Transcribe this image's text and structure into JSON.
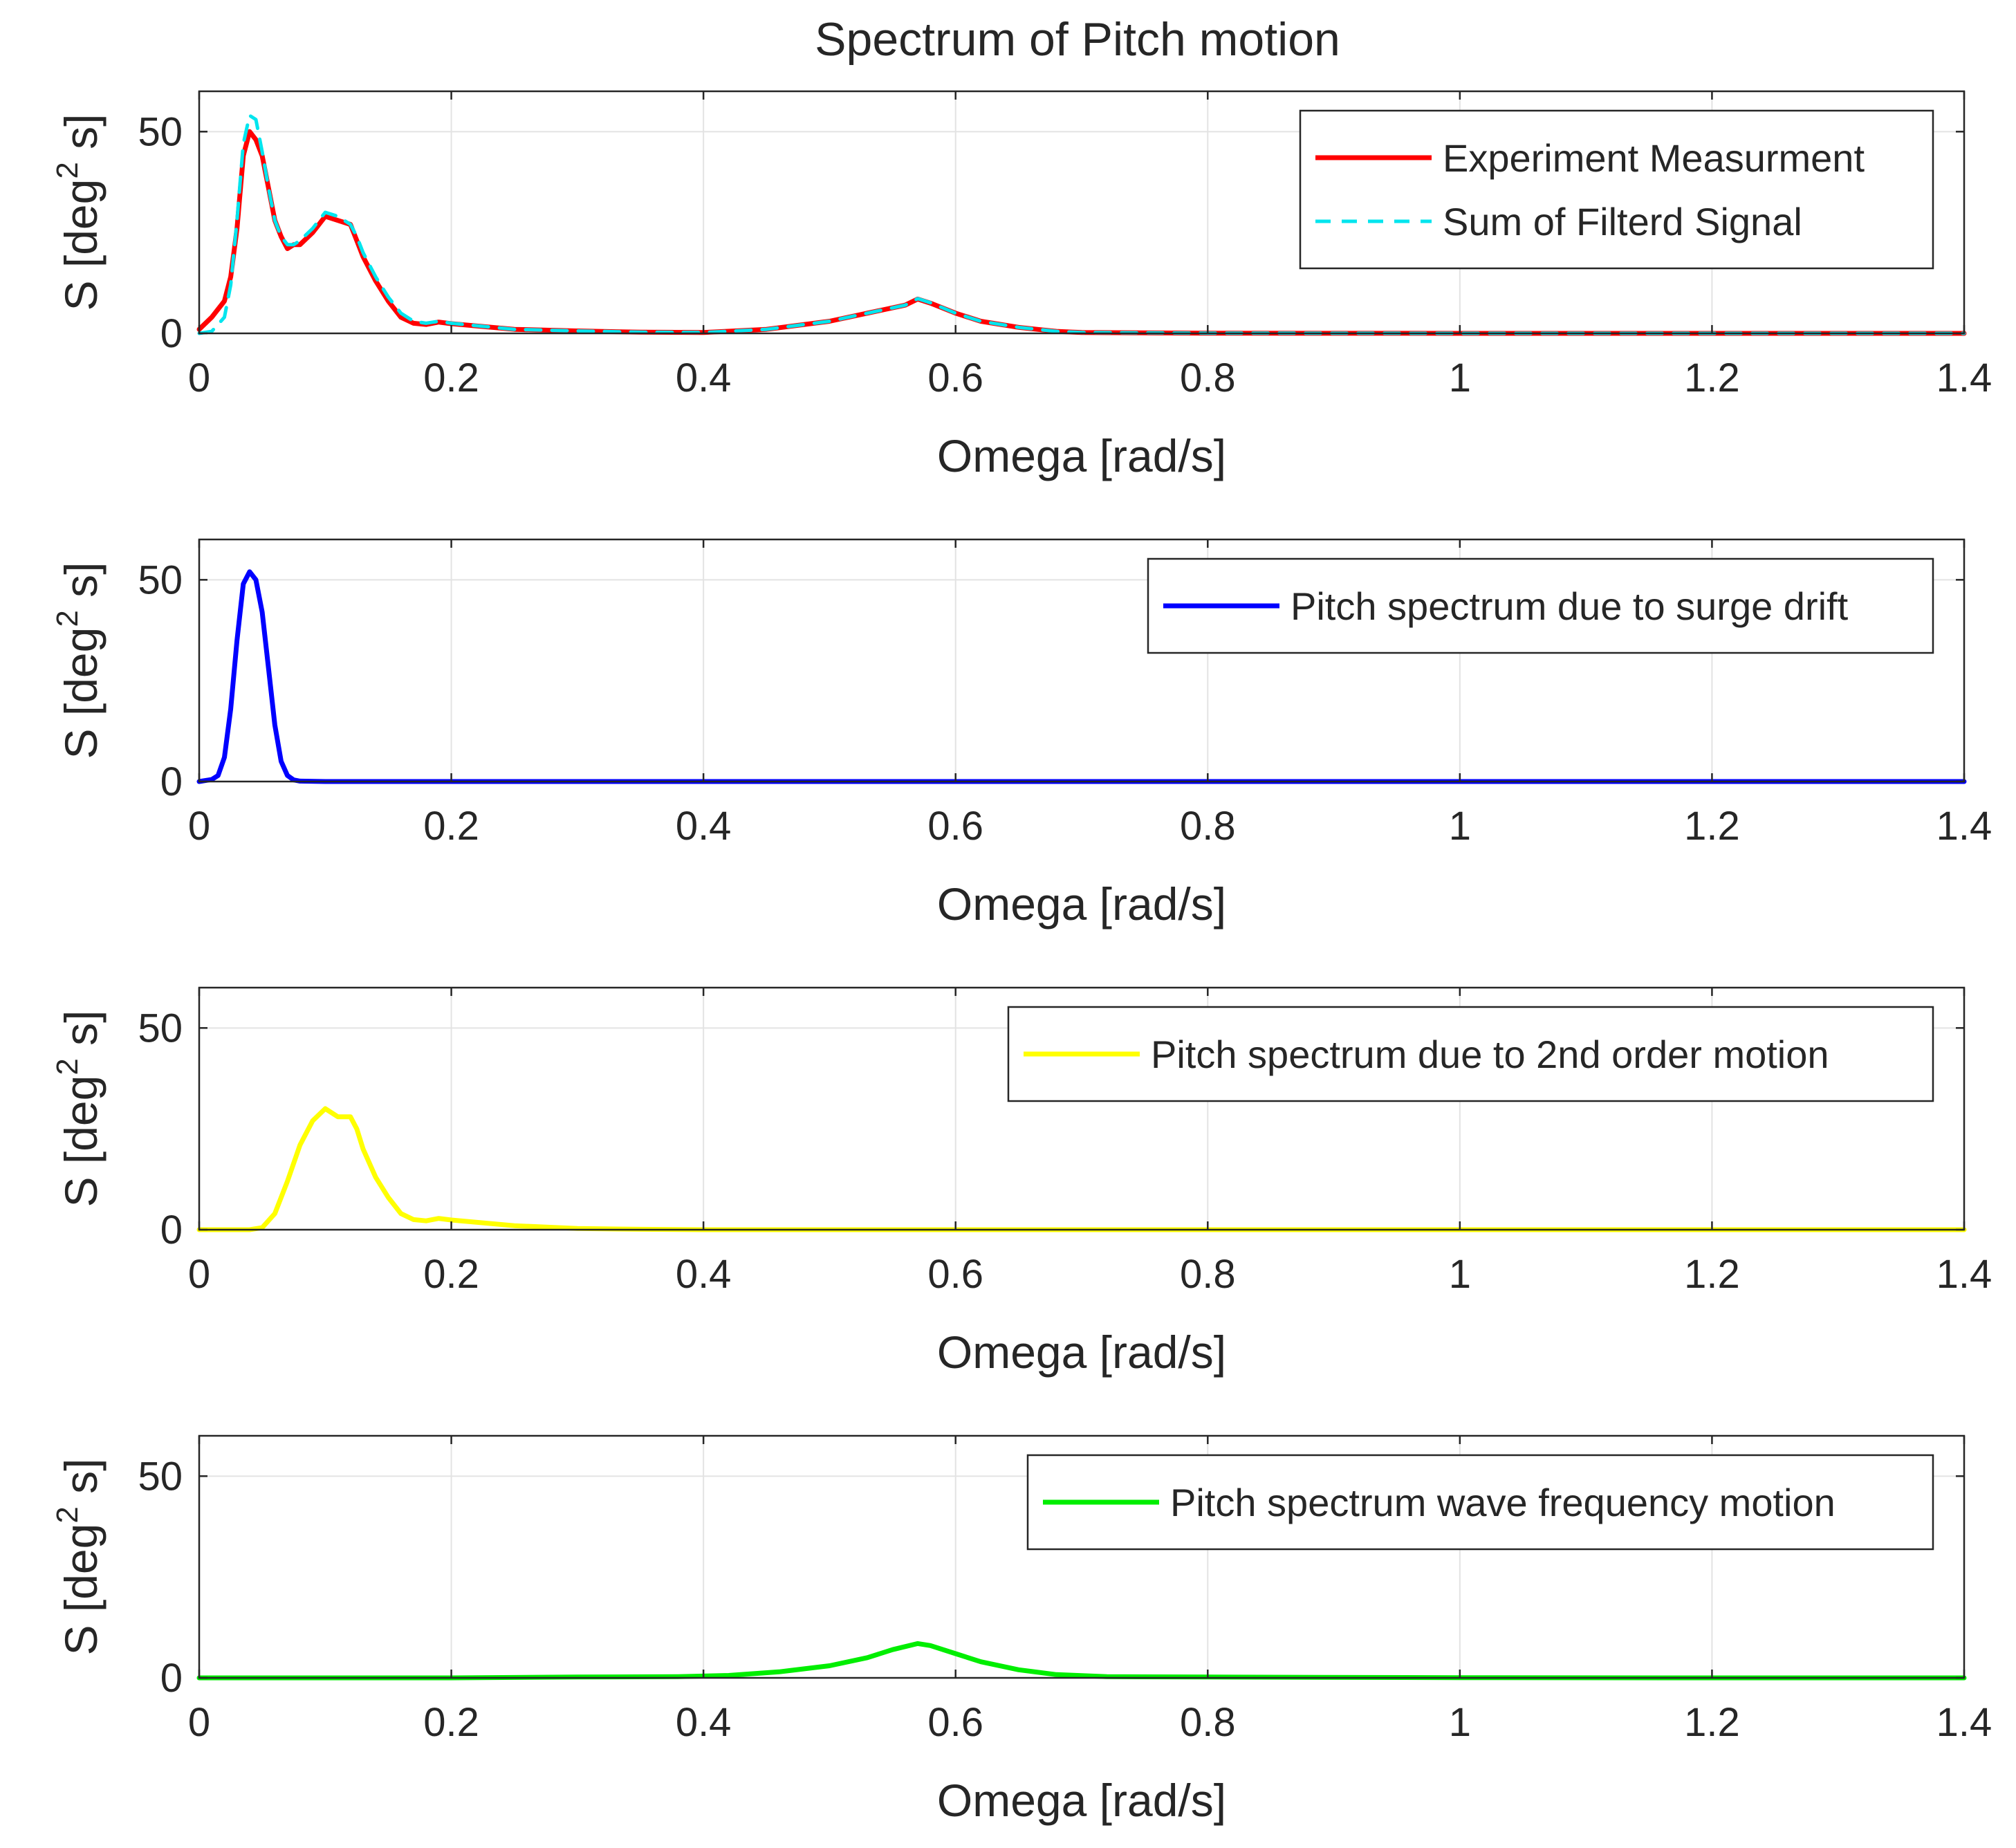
{
  "figure": {
    "title": "Spectrum of Pitch motion"
  },
  "chart_data": [
    {
      "type": "line",
      "xlabel": "Omega [rad/s]",
      "ylabel_prefix": "S [deg",
      "ylabel_sup": "2",
      "ylabel_suffix": " s]",
      "xlim": [
        0,
        1.4
      ],
      "ylim": [
        0,
        60
      ],
      "xticks": [
        0,
        0.2,
        0.4,
        0.6,
        0.8,
        1,
        1.2,
        1.4
      ],
      "xtick_labels": [
        "0",
        "0.2",
        "0.4",
        "0.6",
        "0.8",
        "1",
        "1.2",
        "1.4"
      ],
      "yticks": [
        0,
        50
      ],
      "ytick_labels": [
        "0",
        "50"
      ],
      "grid": true,
      "legend_position": "top-right",
      "series": [
        {
          "name": "Experiment Measurment",
          "color": "#ff0000",
          "style": "solid",
          "x": [
            0,
            0.01,
            0.02,
            0.025,
            0.03,
            0.035,
            0.04,
            0.045,
            0.05,
            0.055,
            0.06,
            0.065,
            0.07,
            0.075,
            0.08,
            0.09,
            0.1,
            0.11,
            0.12,
            0.125,
            0.13,
            0.14,
            0.15,
            0.16,
            0.17,
            0.18,
            0.19,
            0.2,
            0.25,
            0.3,
            0.35,
            0.4,
            0.45,
            0.5,
            0.53,
            0.56,
            0.57,
            0.58,
            0.6,
            0.62,
            0.65,
            0.68,
            0.7,
            0.8,
            1.0,
            1.2,
            1.4
          ],
          "values": [
            1,
            4,
            8,
            14,
            26,
            44,
            50,
            48,
            44,
            36,
            28,
            24,
            21,
            22,
            22,
            25,
            29,
            28,
            27,
            23,
            19,
            13,
            8,
            4,
            2.5,
            2.2,
            2.8,
            2.4,
            1,
            0.6,
            0.3,
            0.2,
            1,
            3,
            5,
            7,
            8.5,
            7.5,
            5,
            3,
            1.5,
            0.5,
            0.2,
            0.05,
            0,
            0,
            0
          ]
        },
        {
          "name": "Sum of Filterd Signal",
          "color": "#00e5ee",
          "style": "dashed",
          "x": [
            0,
            0.01,
            0.02,
            0.025,
            0.03,
            0.035,
            0.04,
            0.045,
            0.05,
            0.055,
            0.06,
            0.065,
            0.07,
            0.075,
            0.08,
            0.09,
            0.1,
            0.11,
            0.12,
            0.125,
            0.13,
            0.14,
            0.15,
            0.16,
            0.17,
            0.18,
            0.19,
            0.2,
            0.25,
            0.3,
            0.35,
            0.4,
            0.45,
            0.5,
            0.53,
            0.56,
            0.57,
            0.58,
            0.6,
            0.62,
            0.65,
            0.68,
            0.7,
            0.8,
            1.0,
            1.2,
            1.4
          ],
          "values": [
            0,
            0.5,
            4,
            12,
            28,
            47,
            54,
            53,
            45,
            36,
            28,
            24,
            22,
            22,
            23,
            26,
            30,
            29,
            27,
            24,
            20,
            14,
            9,
            5,
            3,
            2.5,
            3,
            2.5,
            1,
            0.6,
            0.3,
            0.2,
            1,
            3,
            5,
            7,
            8.6,
            7.6,
            5,
            3,
            1.5,
            0.5,
            0.2,
            0.05,
            0,
            0,
            0
          ]
        }
      ]
    },
    {
      "type": "line",
      "xlabel": "Omega [rad/s]",
      "ylabel_prefix": "S [deg",
      "ylabel_sup": "2",
      "ylabel_suffix": " s]",
      "xlim": [
        0,
        1.4
      ],
      "ylim": [
        0,
        60
      ],
      "xticks": [
        0,
        0.2,
        0.4,
        0.6,
        0.8,
        1,
        1.2,
        1.4
      ],
      "xtick_labels": [
        "0",
        "0.2",
        "0.4",
        "0.6",
        "0.8",
        "1",
        "1.2",
        "1.4"
      ],
      "yticks": [
        0,
        50
      ],
      "ytick_labels": [
        "0",
        "50"
      ],
      "grid": true,
      "legend_position": "top-right",
      "series": [
        {
          "name": "Pitch spectrum due to surge drift",
          "color": "#0000ff",
          "style": "solid",
          "x": [
            0,
            0.01,
            0.015,
            0.02,
            0.025,
            0.03,
            0.035,
            0.04,
            0.045,
            0.05,
            0.055,
            0.06,
            0.065,
            0.07,
            0.075,
            0.08,
            0.1,
            0.2,
            0.4,
            0.6,
            0.8,
            1.0,
            1.2,
            1.4
          ],
          "values": [
            0,
            0.5,
            1.5,
            6,
            18,
            35,
            49,
            52,
            50,
            42,
            28,
            14,
            5,
            1.5,
            0.4,
            0.1,
            0,
            0,
            0,
            0,
            0,
            0,
            0,
            0
          ]
        }
      ]
    },
    {
      "type": "line",
      "xlabel": "Omega [rad/s]",
      "ylabel_prefix": "S [deg",
      "ylabel_sup": "2",
      "ylabel_suffix": " s]",
      "xlim": [
        0,
        1.4
      ],
      "ylim": [
        0,
        60
      ],
      "xticks": [
        0,
        0.2,
        0.4,
        0.6,
        0.8,
        1,
        1.2,
        1.4
      ],
      "xtick_labels": [
        "0",
        "0.2",
        "0.4",
        "0.6",
        "0.8",
        "1",
        "1.2",
        "1.4"
      ],
      "yticks": [
        0,
        50
      ],
      "ytick_labels": [
        "0",
        "50"
      ],
      "grid": true,
      "legend_position": "top-right",
      "series": [
        {
          "name": "Pitch spectrum due to 2nd order motion",
          "color": "#ffff00",
          "style": "solid",
          "x": [
            0,
            0.04,
            0.05,
            0.06,
            0.07,
            0.08,
            0.09,
            0.1,
            0.11,
            0.12,
            0.125,
            0.13,
            0.14,
            0.15,
            0.16,
            0.17,
            0.18,
            0.19,
            0.2,
            0.25,
            0.3,
            0.35,
            0.4,
            0.6,
            0.8,
            1.0,
            1.2,
            1.4
          ],
          "values": [
            0,
            0,
            0.5,
            4,
            12,
            21,
            27,
            30,
            28,
            28,
            25,
            20,
            13,
            8,
            4,
            2.5,
            2.2,
            2.8,
            2.4,
            1,
            0.3,
            0.1,
            0,
            0,
            0,
            0,
            0,
            0
          ]
        }
      ]
    },
    {
      "type": "line",
      "xlabel": "Omega [rad/s]",
      "ylabel_prefix": "S [deg",
      "ylabel_sup": "2",
      "ylabel_suffix": " s]",
      "xlim": [
        0,
        1.4
      ],
      "ylim": [
        0,
        60
      ],
      "xticks": [
        0,
        0.2,
        0.4,
        0.6,
        0.8,
        1,
        1.2,
        1.4
      ],
      "xtick_labels": [
        "0",
        "0.2",
        "0.4",
        "0.6",
        "0.8",
        "1",
        "1.2",
        "1.4"
      ],
      "yticks": [
        0,
        50
      ],
      "ytick_labels": [
        "0",
        "50"
      ],
      "grid": true,
      "legend_position": "top-right",
      "series": [
        {
          "name": "Pitch spectrum wave frequency motion",
          "color": "#00ee00",
          "style": "solid",
          "x": [
            0,
            0.2,
            0.3,
            0.38,
            0.42,
            0.46,
            0.5,
            0.53,
            0.55,
            0.57,
            0.58,
            0.6,
            0.62,
            0.65,
            0.68,
            0.72,
            0.8,
            1.0,
            1.2,
            1.4
          ],
          "values": [
            0,
            0,
            0.2,
            0.3,
            0.6,
            1.5,
            3,
            5,
            7,
            8.5,
            8,
            6,
            4,
            2,
            0.8,
            0.3,
            0.2,
            0.05,
            0,
            0
          ]
        }
      ]
    }
  ]
}
